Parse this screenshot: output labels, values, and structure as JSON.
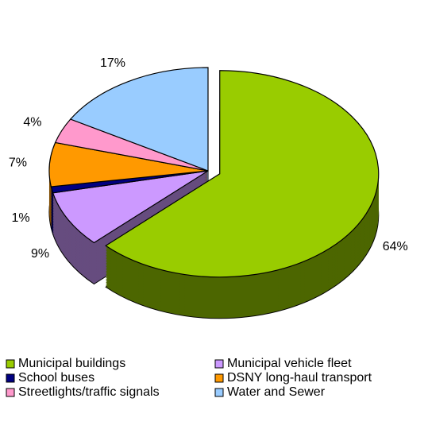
{
  "chart_data": {
    "type": "pie",
    "categories": [
      "Municipal buildings",
      "Municipal vehicle fleet",
      "School buses",
      "DSNY long-haul transport",
      "Streetlights/traffic signals",
      "Water and Sewer"
    ],
    "values": [
      64,
      9,
      1,
      7,
      4,
      17
    ],
    "value_labels": [
      "64%",
      "9%",
      "1%",
      "7%",
      "4%",
      "17%"
    ],
    "colors": [
      "#99cc00",
      "#cc99ff",
      "#000080",
      "#ff9900",
      "#ff99cc",
      "#99ccff"
    ],
    "legend": "bottom"
  }
}
